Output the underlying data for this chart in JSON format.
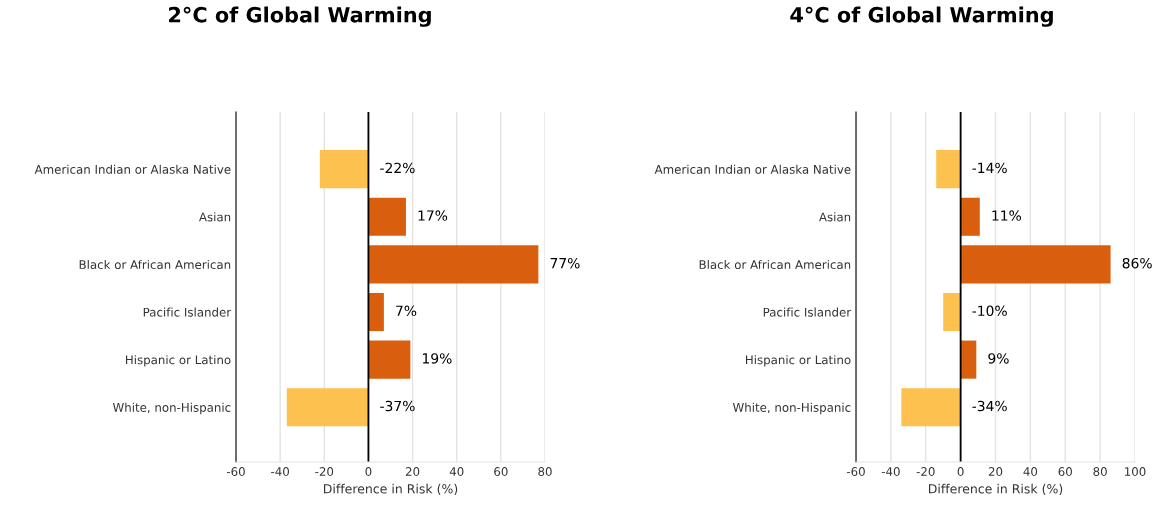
{
  "chart_data": [
    {
      "type": "bar",
      "orientation": "horizontal",
      "title": "2°C of Global Warming",
      "xlabel": "Difference in Risk (%)",
      "categories": [
        "American Indian or Alaska Native",
        "Asian",
        "Black or African American",
        "Pacific Islander",
        "Hispanic or Latino",
        "White, non-Hispanic"
      ],
      "values": [
        -22,
        17,
        77,
        7,
        19,
        -37
      ],
      "colors": [
        "#fdc150",
        "#d95f0e",
        "#d95f0e",
        "#d95f0e",
        "#d95f0e",
        "#fdc150"
      ],
      "value_labels": [
        "-22%",
        "17%",
        "77%",
        "7%",
        "19%",
        "-37%"
      ],
      "xlim": [
        -60,
        80
      ],
      "xticks": [
        -60,
        -40,
        -20,
        0,
        20,
        40,
        60,
        80
      ],
      "grid": "x",
      "ref_lines": [
        {
          "axis": "x",
          "value": 0,
          "color": "#000000"
        }
      ]
    },
    {
      "type": "bar",
      "orientation": "horizontal",
      "title": "4°C of Global Warming",
      "xlabel": "Difference in Risk (%)",
      "categories": [
        "American Indian or Alaska Native",
        "Asian",
        "Black or African American",
        "Pacific Islander",
        "Hispanic or Latino",
        "White, non-Hispanic"
      ],
      "values": [
        -14,
        11,
        86,
        -10,
        9,
        -34
      ],
      "colors": [
        "#fdc150",
        "#d95f0e",
        "#d95f0e",
        "#fdc150",
        "#d95f0e",
        "#fdc150"
      ],
      "value_labels": [
        "-14%",
        "11%",
        "86%",
        "-10%",
        "9%",
        "-34%"
      ],
      "xlim": [
        -60,
        100
      ],
      "xticks": [
        -60,
        -40,
        -20,
        0,
        20,
        40,
        60,
        80,
        100
      ],
      "grid": "x",
      "ref_lines": [
        {
          "axis": "x",
          "value": 0,
          "color": "#000000"
        }
      ]
    }
  ]
}
